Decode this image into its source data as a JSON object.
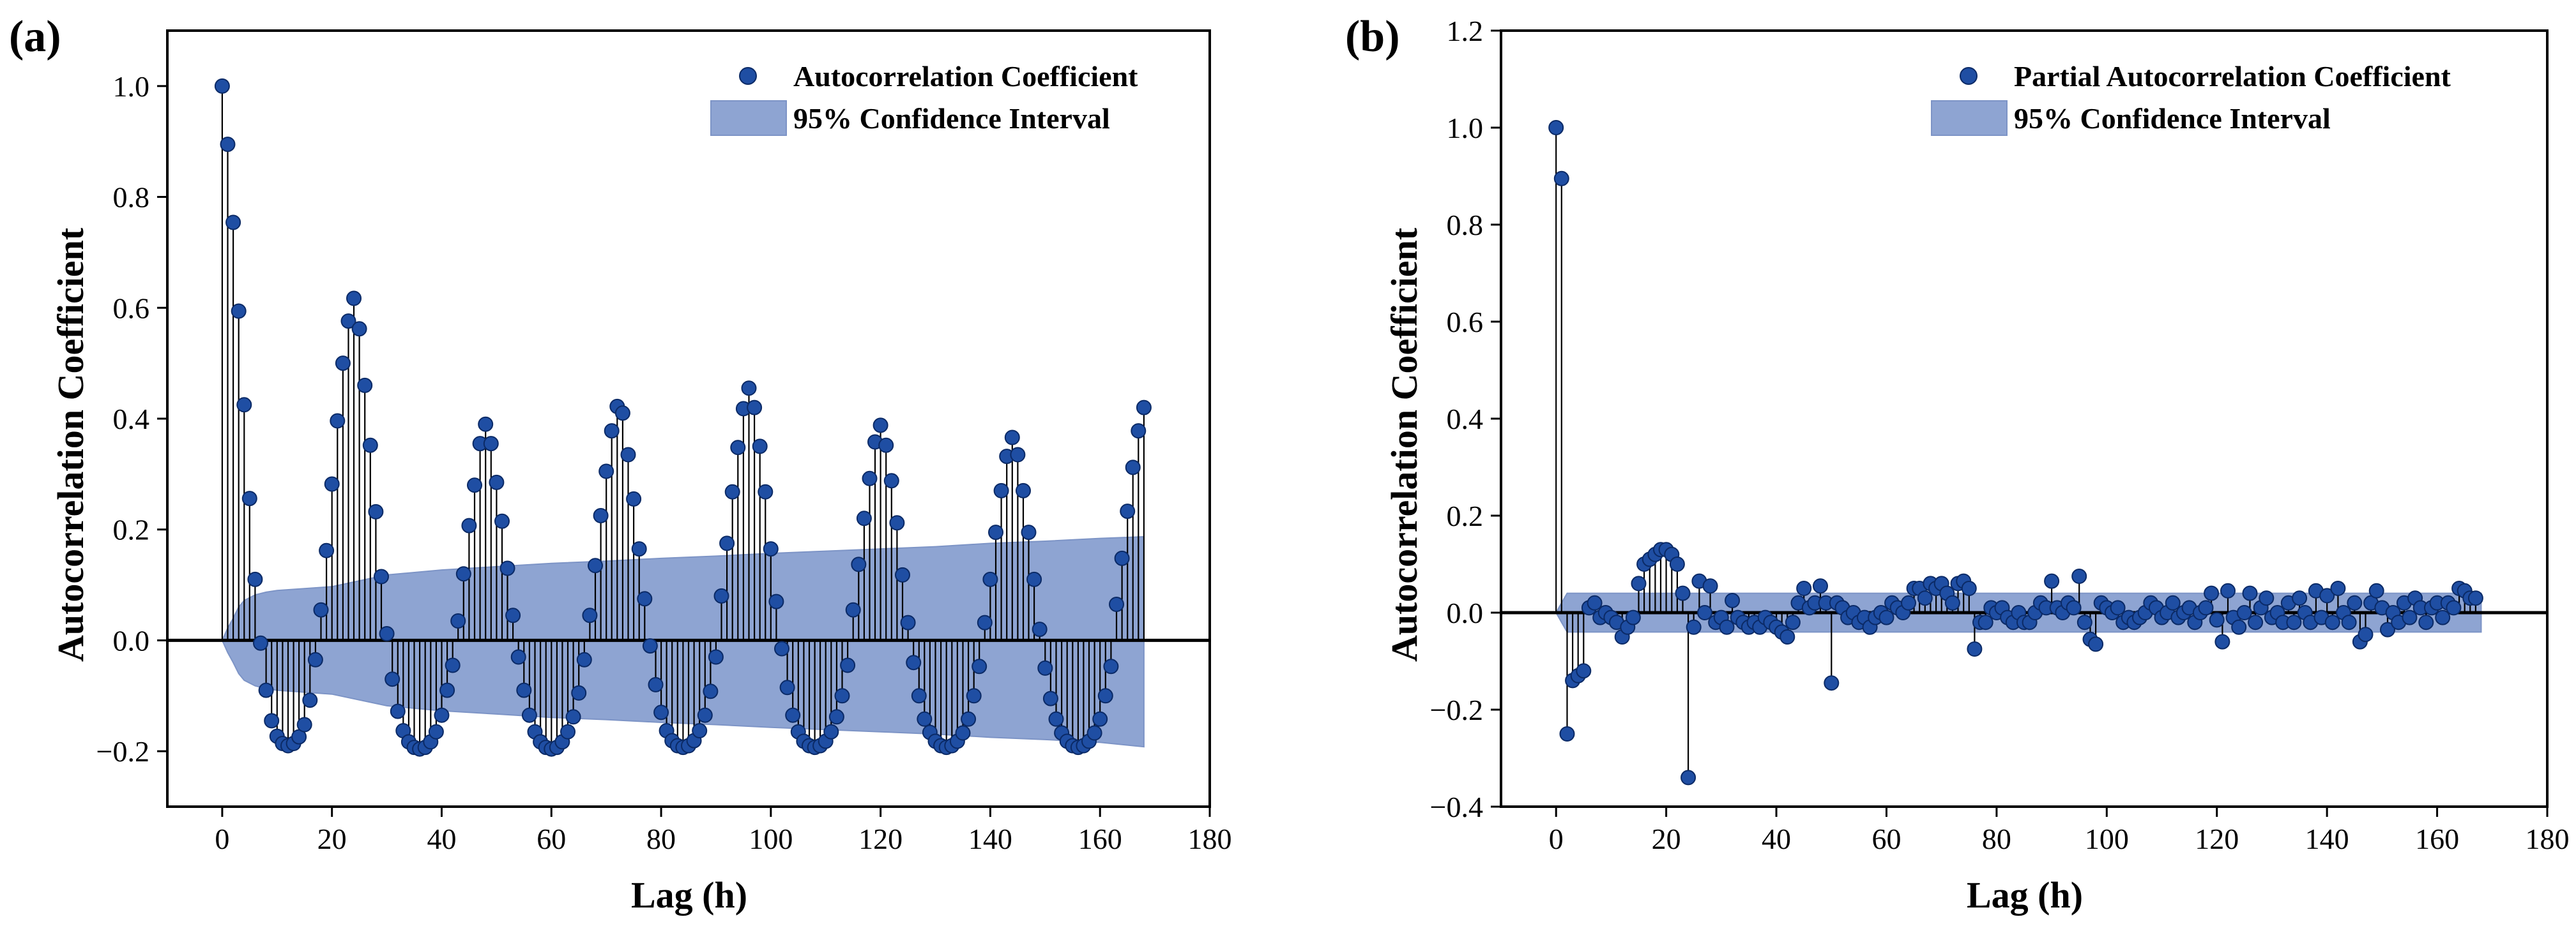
{
  "colors": {
    "marker": "#1f4ea3",
    "marker_edge": "#0b2a66",
    "band_fill": "#8ea4d2",
    "band_edge": "#7d94c6",
    "stem": "#000000",
    "axis": "#000000",
    "background": "#ffffff"
  },
  "chart_data": [
    {
      "id": "acf",
      "type": "scatter",
      "panel_label": "(a)",
      "xlabel": "Lag (h)",
      "ylabel": "Autocorrelation Coefficient",
      "xlim": [
        -10,
        180
      ],
      "ylim": [
        -0.3,
        1.1
      ],
      "xticks": [
        0,
        20,
        40,
        60,
        80,
        100,
        120,
        140,
        160,
        180
      ],
      "yticks": [
        -0.2,
        0.0,
        0.2,
        0.4,
        0.6,
        0.8,
        1.0
      ],
      "ytick_labels": [
        "−0.2",
        "0.0",
        "0.2",
        "0.4",
        "0.6",
        "0.8",
        "1.0"
      ],
      "zero_line": true,
      "legend": [
        {
          "kind": "marker",
          "label": "Autocorrelation Coefficient"
        },
        {
          "kind": "band",
          "label": "95% Confidence Interval"
        }
      ],
      "legend_position": "top-right",
      "series": [
        {
          "name": "Autocorrelation Coefficient",
          "x_start": 0,
          "values": [
            1.0,
            0.895,
            0.754,
            0.594,
            0.425,
            0.256,
            0.11,
            -0.005,
            -0.09,
            -0.145,
            -0.173,
            -0.186,
            -0.19,
            -0.186,
            -0.174,
            -0.152,
            -0.108,
            -0.035,
            0.055,
            0.162,
            0.282,
            0.396,
            0.5,
            0.576,
            0.617,
            0.562,
            0.46,
            0.352,
            0.232,
            0.115,
            0.012,
            -0.07,
            -0.128,
            -0.163,
            -0.183,
            -0.193,
            -0.196,
            -0.193,
            -0.183,
            -0.165,
            -0.135,
            -0.09,
            -0.045,
            0.035,
            0.12,
            0.207,
            0.28,
            0.355,
            0.39,
            0.355,
            0.285,
            0.215,
            0.13,
            0.045,
            -0.03,
            -0.09,
            -0.135,
            -0.165,
            -0.183,
            -0.193,
            -0.196,
            -0.193,
            -0.183,
            -0.165,
            -0.138,
            -0.095,
            -0.035,
            0.045,
            0.135,
            0.225,
            0.305,
            0.378,
            0.422,
            0.41,
            0.335,
            0.255,
            0.165,
            0.075,
            -0.01,
            -0.08,
            -0.13,
            -0.163,
            -0.181,
            -0.19,
            -0.193,
            -0.19,
            -0.181,
            -0.163,
            -0.135,
            -0.092,
            -0.03,
            0.08,
            0.175,
            0.268,
            0.348,
            0.418,
            0.455,
            0.42,
            0.35,
            0.268,
            0.165,
            0.07,
            -0.015,
            -0.085,
            -0.135,
            -0.165,
            -0.182,
            -0.19,
            -0.193,
            -0.19,
            -0.182,
            -0.165,
            -0.138,
            -0.1,
            -0.045,
            0.055,
            0.137,
            0.22,
            0.292,
            0.358,
            0.388,
            0.352,
            0.288,
            0.212,
            0.118,
            0.032,
            -0.04,
            -0.1,
            -0.142,
            -0.166,
            -0.182,
            -0.19,
            -0.193,
            -0.19,
            -0.182,
            -0.167,
            -0.142,
            -0.1,
            -0.047,
            0.032,
            0.11,
            0.195,
            0.27,
            0.332,
            0.366,
            0.335,
            0.27,
            0.195,
            0.11,
            0.02,
            -0.05,
            -0.105,
            -0.142,
            -0.167,
            -0.182,
            -0.19,
            -0.193,
            -0.19,
            -0.182,
            -0.167,
            -0.142,
            -0.1,
            -0.047,
            0.065,
            0.148,
            0.233,
            0.312,
            0.378,
            0.42
          ]
        }
      ],
      "confidence_band": {
        "x": [
          1,
          2,
          3,
          4,
          6,
          8,
          10,
          20,
          30,
          40,
          50,
          60,
          70,
          80,
          90,
          100,
          110,
          120,
          130,
          140,
          150,
          160,
          168
        ],
        "upper": [
          0.022,
          0.04,
          0.06,
          0.072,
          0.082,
          0.087,
          0.09,
          0.097,
          0.118,
          0.127,
          0.133,
          0.139,
          0.143,
          0.148,
          0.152,
          0.157,
          0.161,
          0.165,
          0.169,
          0.175,
          0.179,
          0.184,
          0.187
        ],
        "lower": [
          -0.022,
          -0.04,
          -0.06,
          -0.072,
          -0.082,
          -0.087,
          -0.09,
          -0.097,
          -0.118,
          -0.127,
          -0.133,
          -0.139,
          -0.143,
          -0.148,
          -0.152,
          -0.157,
          -0.161,
          -0.165,
          -0.169,
          -0.175,
          -0.179,
          -0.184,
          -0.192
        ]
      }
    },
    {
      "id": "pacf",
      "type": "scatter",
      "panel_label": "(b)",
      "xlabel": "Lag (h)",
      "ylabel": "Autocorrelation Coefficient",
      "xlim": [
        -10,
        180
      ],
      "ylim": [
        -0.4,
        1.2
      ],
      "xticks": [
        0,
        20,
        40,
        60,
        80,
        100,
        120,
        140,
        160,
        180
      ],
      "yticks": [
        -0.4,
        -0.2,
        0.0,
        0.2,
        0.4,
        0.6,
        0.8,
        1.0,
        1.2
      ],
      "ytick_labels": [
        "−0.4",
        "−0.2",
        "0.0",
        "0.2",
        "0.4",
        "0.6",
        "0.8",
        "1.0",
        "1.2"
      ],
      "zero_line": true,
      "legend": [
        {
          "kind": "marker",
          "label": "Partial Autocorrelation Coefficient"
        },
        {
          "kind": "band",
          "label": "95% Confidence Interval"
        }
      ],
      "legend_position": "top-right",
      "series": [
        {
          "name": "Partial Autocorrelation Coefficient",
          "x_start": 0,
          "values": [
            1.0,
            0.895,
            -0.25,
            -0.14,
            -0.13,
            -0.12,
            0.01,
            0.02,
            -0.01,
            0.0,
            -0.01,
            -0.02,
            -0.05,
            -0.03,
            -0.01,
            0.06,
            0.1,
            0.11,
            0.12,
            0.13,
            0.13,
            0.12,
            0.1,
            0.04,
            -0.34,
            -0.03,
            0.065,
            0.0,
            0.055,
            -0.02,
            -0.01,
            -0.03,
            0.025,
            -0.01,
            -0.02,
            -0.03,
            -0.02,
            -0.03,
            -0.01,
            -0.02,
            -0.03,
            -0.04,
            -0.05,
            -0.02,
            0.02,
            0.05,
            0.01,
            0.02,
            0.055,
            0.02,
            -0.145,
            0.02,
            0.01,
            -0.01,
            0.0,
            -0.02,
            -0.01,
            -0.03,
            -0.01,
            0.0,
            -0.01,
            0.02,
            0.01,
            0.0,
            0.02,
            0.05,
            0.05,
            0.03,
            0.06,
            0.05,
            0.06,
            0.04,
            0.02,
            0.06,
            0.065,
            0.05,
            -0.075,
            -0.02,
            -0.02,
            0.01,
            0.0,
            0.01,
            -0.01,
            -0.02,
            0.0,
            -0.02,
            -0.02,
            0.0,
            0.02,
            0.01,
            0.065,
            0.01,
            0.0,
            0.02,
            0.01,
            0.075,
            -0.02,
            -0.055,
            -0.065,
            0.02,
            0.01,
            0.0,
            0.01,
            -0.02,
            -0.01,
            -0.02,
            -0.01,
            0.0,
            0.02,
            0.01,
            -0.01,
            0.0,
            0.02,
            -0.01,
            0.0,
            0.01,
            -0.02,
            0.0,
            0.01,
            0.04,
            -0.015,
            -0.06,
            0.045,
            -0.01,
            -0.03,
            0.0,
            0.04,
            -0.02,
            0.01,
            0.03,
            -0.01,
            0.0,
            -0.02,
            0.02,
            -0.02,
            0.03,
            0.0,
            -0.02,
            0.045,
            -0.01,
            0.035,
            -0.02,
            0.05,
            0.0,
            -0.02,
            0.02,
            -0.06,
            -0.045,
            0.02,
            0.045,
            0.01,
            -0.035,
            0.0,
            -0.02,
            0.02,
            -0.01,
            0.03,
            0.01,
            -0.02,
            0.01,
            0.02,
            -0.01,
            0.02,
            0.01,
            0.05,
            0.045,
            0.03,
            0.03
          ]
        }
      ],
      "confidence_band": {
        "x": [
          1,
          2,
          168
        ],
        "upper": [
          0.02,
          0.04,
          0.04
        ],
        "lower": [
          -0.02,
          -0.04,
          -0.04
        ]
      }
    }
  ]
}
